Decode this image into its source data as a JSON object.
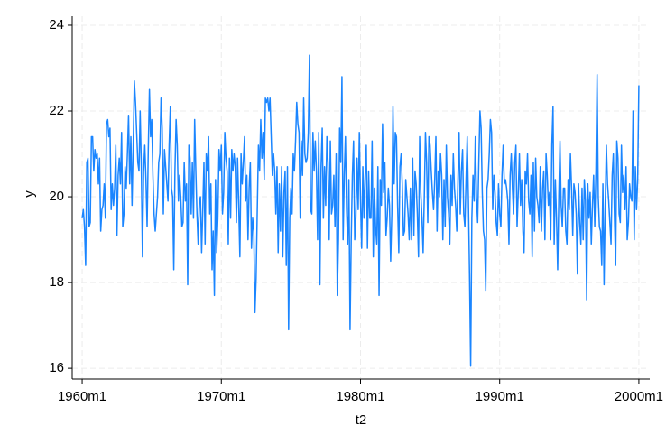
{
  "chart_data": {
    "type": "line",
    "x_label": "t2",
    "y_label": "y",
    "xlim": [
      -8.6,
      489.4
    ],
    "ylim": [
      15.75,
      24.21
    ],
    "xticks": [
      {
        "value": 0,
        "label": "1960m1"
      },
      {
        "value": 120,
        "label": "1970m1"
      },
      {
        "value": 240,
        "label": "1980m1"
      },
      {
        "value": 360,
        "label": "1990m1"
      },
      {
        "value": 480,
        "label": "2000m1"
      }
    ],
    "yticks": [
      16,
      18,
      20,
      22,
      24
    ],
    "grid": true,
    "series": [
      {
        "color": "#1a85ff",
        "x": [
          0,
          1,
          2,
          3,
          4,
          5,
          6,
          7,
          8,
          9,
          10,
          11,
          12,
          13,
          14,
          15,
          16,
          17,
          18,
          19,
          20,
          21,
          22,
          23,
          24,
          25,
          26,
          27,
          28,
          29,
          30,
          31,
          32,
          33,
          34,
          35,
          36,
          37,
          38,
          39,
          40,
          41,
          42,
          43,
          44,
          45,
          46,
          47,
          48,
          49,
          50,
          51,
          52,
          53,
          54,
          55,
          56,
          57,
          58,
          59,
          60,
          61,
          62,
          63,
          64,
          65,
          66,
          67,
          68,
          69,
          70,
          71,
          72,
          73,
          74,
          75,
          76,
          77,
          78,
          79,
          80,
          81,
          82,
          83,
          84,
          85,
          86,
          87,
          88,
          89,
          90,
          91,
          92,
          93,
          94,
          95,
          96,
          97,
          98,
          99,
          100,
          101,
          102,
          103,
          104,
          105,
          106,
          107,
          108,
          109,
          110,
          111,
          112,
          113,
          114,
          115,
          116,
          117,
          118,
          119,
          120,
          121,
          122,
          123,
          124,
          125,
          126,
          127,
          128,
          129,
          130,
          131,
          132,
          133,
          134,
          135,
          136,
          137,
          138,
          139,
          140,
          141,
          142,
          143,
          144,
          145,
          146,
          147,
          148,
          149,
          150,
          151,
          152,
          153,
          154,
          155,
          156,
          157,
          158,
          159,
          160,
          161,
          162,
          163,
          164,
          165,
          166,
          167,
          168,
          169,
          170,
          171,
          172,
          173,
          174,
          175,
          176,
          177,
          178,
          179,
          180,
          181,
          182,
          183,
          184,
          185,
          186,
          187,
          188,
          189,
          190,
          191,
          192,
          193,
          194,
          195,
          196,
          197,
          198,
          199,
          200,
          201,
          202,
          203,
          204,
          205,
          206,
          207,
          208,
          209,
          210,
          211,
          212,
          213,
          214,
          215,
          216,
          217,
          218,
          219,
          220,
          221,
          222,
          223,
          224,
          225,
          226,
          227,
          228,
          229,
          230,
          231,
          232,
          233,
          234,
          235,
          236,
          237,
          238,
          239,
          240,
          241,
          242,
          243,
          244,
          245,
          246,
          247,
          248,
          249,
          250,
          251,
          252,
          253,
          254,
          255,
          256,
          257,
          258,
          259,
          260,
          261,
          262,
          263,
          264,
          265,
          266,
          267,
          268,
          269,
          270,
          271,
          272,
          273,
          274,
          275,
          276,
          277,
          278,
          279,
          280,
          281,
          282,
          283,
          284,
          285,
          286,
          287,
          288,
          289,
          290,
          291,
          292,
          293,
          294,
          295,
          296,
          297,
          298,
          299,
          300,
          301,
          302,
          303,
          304,
          305,
          306,
          307,
          308,
          309,
          310,
          311,
          312,
          313,
          314,
          315,
          316,
          317,
          318,
          319,
          320,
          321,
          322,
          323,
          324,
          325,
          326,
          327,
          328,
          329,
          330,
          331,
          332,
          333,
          334,
          335,
          336,
          337,
          338,
          339,
          340,
          341,
          342,
          343,
          344,
          345,
          346,
          347,
          348,
          349,
          350,
          351,
          352,
          353,
          354,
          355,
          356,
          357,
          358,
          359,
          360,
          361,
          362,
          363,
          364,
          365,
          366,
          367,
          368,
          369,
          370,
          371,
          372,
          373,
          374,
          375,
          376,
          377,
          378,
          379,
          380,
          381,
          382,
          383,
          384,
          385,
          386,
          387,
          388,
          389,
          390,
          391,
          392,
          393,
          394,
          395,
          396,
          397,
          398,
          399,
          400,
          401,
          402,
          403,
          404,
          405,
          406,
          407,
          408,
          409,
          410,
          411,
          412,
          413,
          414,
          415,
          416,
          417,
          418,
          419,
          420,
          421,
          422,
          423,
          424,
          425,
          426,
          427,
          428,
          429,
          430,
          431,
          432,
          433,
          434,
          435,
          436,
          437,
          438,
          439,
          440,
          441,
          442,
          443,
          444,
          445,
          446,
          447,
          448,
          449,
          450,
          451,
          452,
          453,
          454,
          455,
          456,
          457,
          458,
          459,
          460,
          461,
          462,
          463,
          464,
          465,
          466,
          467,
          468,
          469,
          470,
          471,
          472,
          473,
          474,
          475,
          476,
          477,
          478,
          479,
          480
        ],
        "values": [
          19.5,
          19.7,
          19.3,
          18.4,
          20.8,
          20.9,
          19.3,
          19.4,
          21.4,
          21.4,
          20.6,
          21.1,
          20.9,
          21.0,
          20.3,
          20.9,
          19.2,
          19.7,
          19.8,
          20.3,
          19.5,
          21.7,
          21.8,
          21.4,
          21.6,
          19.7,
          20.3,
          19.8,
          20.2,
          21.2,
          19.1,
          20.5,
          20.9,
          20.3,
          21.5,
          19.3,
          19.6,
          20.7,
          20.2,
          21.0,
          21.9,
          20.3,
          21.4,
          19.8,
          21.2,
          22.7,
          22.2,
          21.5,
          20.8,
          20.6,
          22.0,
          20.7,
          18.6,
          20.6,
          21.2,
          20.4,
          19.3,
          21.1,
          22.5,
          21.4,
          21.8,
          20.5,
          19.6,
          19.2,
          19.6,
          20.0,
          20.8,
          21.0,
          22.3,
          21.6,
          19.6,
          21.1,
          20.7,
          20.3,
          19.9,
          21.2,
          22.1,
          20.2,
          20.0,
          18.3,
          20.6,
          21.8,
          21.2,
          19.9,
          20.5,
          20.0,
          19.3,
          19.4,
          20.8,
          19.9,
          20.3,
          17.95,
          21.2,
          20.9,
          19.6,
          20.8,
          19.5,
          21.8,
          20.6,
          19.6,
          18.9,
          19.9,
          20.0,
          18.7,
          19.7,
          20.8,
          18.9,
          21.0,
          20.6,
          21.4,
          19.6,
          20.3,
          18.3,
          19.2,
          17.7,
          20.4,
          18.7,
          19.5,
          21.1,
          20.6,
          21.2,
          19.6,
          20.1,
          21.5,
          20.9,
          20.6,
          18.9,
          20.9,
          19.5,
          21.1,
          20.6,
          21.0,
          20.7,
          19.4,
          20.9,
          19.8,
          18.6,
          21.0,
          20.3,
          20.8,
          21.4,
          19.9,
          20.5,
          19.0,
          20.2,
          20.8,
          18.8,
          19.5,
          19.2,
          17.3,
          18.1,
          19.7,
          21.2,
          20.6,
          21.8,
          20.9,
          21.5,
          20.4,
          22.3,
          22.2,
          22.3,
          22.0,
          22.3,
          21.4,
          20.5,
          21.0,
          20.6,
          19.6,
          20.7,
          18.7,
          20.3,
          19.2,
          20.7,
          18.6,
          20.1,
          20.6,
          18.4,
          20.7,
          16.9,
          19.5,
          20.2,
          19.6,
          21.0,
          20.6,
          21.3,
          22.2,
          21.7,
          21.5,
          19.5,
          21.3,
          20.5,
          22.3,
          21.0,
          20.8,
          20.9,
          21.5,
          23.3,
          19.7,
          19.6,
          21.5,
          20.6,
          21.3,
          20.6,
          19.0,
          21.5,
          17.95,
          20.7,
          21.6,
          19.5,
          20.7,
          19.8,
          21.4,
          20.8,
          19.0,
          21.3,
          19.6,
          19.8,
          20.5,
          19.3,
          21.0,
          17.7,
          19.0,
          21.6,
          20.8,
          22.8,
          19.0,
          20.5,
          21.4,
          19.7,
          18.9,
          20.4,
          16.9,
          19.0,
          20.5,
          21.3,
          19.0,
          19.5,
          20.9,
          19.7,
          21.5,
          19.9,
          18.8,
          20.7,
          19.5,
          20.5,
          21.2,
          18.8,
          20.6,
          19.5,
          19.5,
          21.3,
          18.6,
          20.2,
          19.3,
          18.9,
          20.7,
          17.7,
          20.4,
          19.8,
          21.7,
          20.1,
          20.8,
          19.1,
          19.5,
          20.2,
          19.8,
          18.5,
          19.6,
          22.1,
          20.3,
          21.5,
          21.4,
          19.8,
          18.7,
          20.7,
          21.0,
          20.3,
          19.1,
          19.2,
          20.4,
          20.0,
          19.6,
          19.0,
          20.2,
          19.0,
          20.9,
          19.1,
          20.6,
          20.3,
          19.6,
          18.6,
          21.4,
          20.1,
          19.5,
          18.7,
          20.0,
          21.5,
          20.8,
          19.4,
          21.4,
          21.2,
          20.6,
          20.1,
          19.7,
          20.4,
          21.4,
          19.2,
          20.6,
          20.0,
          21.0,
          20.5,
          19.0,
          20.4,
          19.3,
          21.2,
          20.0,
          19.6,
          18.9,
          20.5,
          19.8,
          21.0,
          20.2,
          19.8,
          19.2,
          20.4,
          21.5,
          19.6,
          20.6,
          21.1,
          19.6,
          19.3,
          20.4,
          21.4,
          20.0,
          18.2,
          16.05,
          19.5,
          20.5,
          19.9,
          21.4,
          20.0,
          19.4,
          20.8,
          22.0,
          21.6,
          20.1,
          19.2,
          19.0,
          17.8,
          20.2,
          20.4,
          21.0,
          21.8,
          21.5,
          19.7,
          20.5,
          20.1,
          19.4,
          19.1,
          20.3,
          19.6,
          19.3,
          20.5,
          21.2,
          20.3,
          20.4,
          20.2,
          19.9,
          18.9,
          20.5,
          21.0,
          20.2,
          19.6,
          20.8,
          21.2,
          19.3,
          20.1,
          21.0,
          19.8,
          20.4,
          19.2,
          18.7,
          20.6,
          20.3,
          21.0,
          19.9,
          19.6,
          20.5,
          18.6,
          20.8,
          19.2,
          20.9,
          20.0,
          19.8,
          19.4,
          20.7,
          19.2,
          20.2,
          20.6,
          19.0,
          21.0,
          20.5,
          19.8,
          20.1,
          19.0,
          21.2,
          22.1,
          18.9,
          20.4,
          19.5,
          18.3,
          20.0,
          21.3,
          19.8,
          19.3,
          20.2,
          20.2,
          19.2,
          18.9,
          20.4,
          19.7,
          21.0,
          20.2,
          19.1,
          20.3,
          20.1,
          19.6,
          18.2,
          20.3,
          19.4,
          18.9,
          20.2,
          19.0,
          20.4,
          19.9,
          17.6,
          20.3,
          19.5,
          20.1,
          18.9,
          19.8,
          20.5,
          19.3,
          20.6,
          22.85,
          20.0,
          19.3,
          19.2,
          18.4,
          20.3,
          17.95,
          19.8,
          21.2,
          20.3,
          19.9,
          19.4,
          18.9,
          20.5,
          21.0,
          19.5,
          18.4,
          21.3,
          20.9,
          19.6,
          19.4,
          21.2,
          20.1,
          20.5,
          19.7,
          20.7,
          19.0,
          19.4,
          20.3,
          20.0,
          19.9,
          22.0,
          19.0,
          20.7,
          19.7,
          20.4,
          22.6
        ]
      }
    ]
  }
}
